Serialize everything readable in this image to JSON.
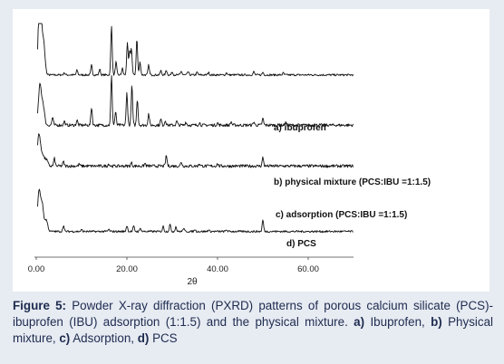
{
  "caption": {
    "figure_label": "Figure 5:",
    "text": " Powder X-ray diffraction (PXRD) patterns of porous calcium silicate (PCS)-ibuprofen (IBU) adsorption (1:1.5) and the physical mixture. ",
    "items": [
      {
        "key": "a)",
        "label": " Ibuprofen",
        "sep": ", "
      },
      {
        "key": "b)",
        "label": " Physical mixture",
        "sep": ", "
      },
      {
        "key": "c)",
        "label": " Adsorption",
        "sep": ", "
      },
      {
        "key": "d)",
        "label": " PCS",
        "sep": ""
      }
    ]
  },
  "chart_data": {
    "type": "line",
    "title": "",
    "xlabel": "2θ",
    "ylabel": "",
    "xlim": [
      0,
      70
    ],
    "x_ticks": [
      0,
      20,
      40,
      60
    ],
    "x_tick_labels": [
      "0.00",
      "20.00",
      "40.00",
      "60.00"
    ],
    "grid": false,
    "series": [
      {
        "name": "a) ibuprofen",
        "baseline": 0.78,
        "noise": 0.6,
        "peaks": [
          [
            0.8,
            28
          ],
          [
            1.6,
            10
          ],
          [
            6.2,
            0.7
          ],
          [
            9.0,
            1.5
          ],
          [
            12.2,
            3
          ],
          [
            14.0,
            1.8
          ],
          [
            16.6,
            15
          ],
          [
            17.6,
            4
          ],
          [
            19.0,
            2
          ],
          [
            20.1,
            10
          ],
          [
            20.6,
            7
          ],
          [
            21.0,
            8
          ],
          [
            22.2,
            11
          ],
          [
            22.9,
            4
          ],
          [
            24.8,
            3
          ],
          [
            27.5,
            1.3
          ],
          [
            28.7,
            1.5
          ],
          [
            30.0,
            0.9
          ],
          [
            32.0,
            1.2
          ],
          [
            33.5,
            1
          ],
          [
            35.5,
            0.8
          ],
          [
            38.0,
            0.8
          ],
          [
            42.0,
            0.7
          ],
          [
            48.0,
            1
          ],
          [
            50.0,
            0.8
          ],
          [
            54.5,
            0.6
          ]
        ]
      },
      {
        "name": "b) physical mixture (PCS:IBU =1:1.5)",
        "baseline": 0.565,
        "noise": 0.9,
        "peaks": [
          [
            0.8,
            12
          ],
          [
            1.5,
            6
          ],
          [
            3.6,
            2.4
          ],
          [
            6.2,
            1.2
          ],
          [
            9.0,
            1.5
          ],
          [
            12.2,
            5.5
          ],
          [
            16.6,
            15
          ],
          [
            17.5,
            4
          ],
          [
            20.0,
            10
          ],
          [
            21.1,
            12
          ],
          [
            22.3,
            8
          ],
          [
            24.8,
            3.5
          ],
          [
            27.5,
            1.8
          ],
          [
            28.5,
            1.5
          ],
          [
            31.0,
            1.2
          ],
          [
            33.0,
            1
          ],
          [
            36.0,
            0.8
          ],
          [
            40.0,
            0.7
          ],
          [
            43.0,
            1
          ],
          [
            48.0,
            1
          ],
          [
            50.0,
            2
          ],
          [
            55.0,
            0.8
          ]
        ]
      },
      {
        "name": "c) adsorption (PCS:IBU =1:1.5)",
        "baseline": 0.39,
        "noise": 0.9,
        "peaks": [
          [
            0.6,
            10
          ],
          [
            1.4,
            3.5
          ],
          [
            2.2,
            2
          ],
          [
            4.0,
            2.3
          ],
          [
            6.0,
            1.3
          ],
          [
            9.5,
            0.6
          ],
          [
            16.0,
            0.7
          ],
          [
            21.0,
            1
          ],
          [
            24.0,
            0.8
          ],
          [
            28.7,
            3.2
          ],
          [
            32.0,
            1.3
          ],
          [
            36.0,
            0.8
          ],
          [
            40.0,
            0.7
          ],
          [
            50.0,
            2.6
          ]
        ]
      },
      {
        "name": "d) PCS",
        "baseline": 0.11,
        "noise": 0.6,
        "peaks": [
          [
            0.6,
            12
          ],
          [
            1.3,
            8
          ],
          [
            2.2,
            3.5
          ],
          [
            6.0,
            1.8
          ],
          [
            10.0,
            0.5
          ],
          [
            16.0,
            0.6
          ],
          [
            20.0,
            1.8
          ],
          [
            21.5,
            1.6
          ],
          [
            23.0,
            1
          ],
          [
            28.0,
            1.6
          ],
          [
            29.5,
            2.2
          ],
          [
            30.8,
            1.5
          ],
          [
            32.5,
            1
          ],
          [
            35.0,
            0.6
          ],
          [
            38.0,
            0.5
          ],
          [
            42.0,
            0.5
          ],
          [
            50.0,
            3.5
          ]
        ]
      }
    ]
  }
}
